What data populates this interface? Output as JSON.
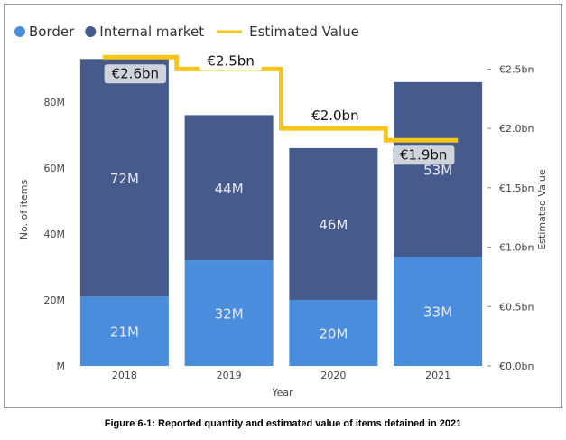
{
  "caption": "Figure 6-1: Reported quantity and estimated value of items detained in 2021",
  "legend": [
    {
      "name": "Border",
      "type": "dot"
    },
    {
      "name": "Internal market",
      "type": "dot"
    },
    {
      "name": "Estimated Value",
      "type": "line"
    }
  ],
  "colors": {
    "border": "#4a8ddc",
    "internal_market": "#465a8c",
    "estimated_value": "#f5c518"
  },
  "chart_data": {
    "type": "bar",
    "stacked": true,
    "categories": [
      "2018",
      "2019",
      "2020",
      "2021"
    ],
    "series": [
      {
        "name": "Border",
        "values": [
          21,
          32,
          20,
          33
        ],
        "labels": [
          "21M",
          "32M",
          "20M",
          "33M"
        ]
      },
      {
        "name": "Internal market",
        "values": [
          72,
          44,
          46,
          53
        ],
        "labels": [
          "72M",
          "44M",
          "46M",
          "53M"
        ]
      }
    ],
    "line_series": {
      "name": "Estimated Value",
      "values": [
        2.6,
        2.5,
        2.0,
        1.9
      ],
      "labels": [
        "€2.6bn",
        "€2.5bn",
        "€2.0bn",
        "€1.9bn"
      ]
    },
    "xlabel": "Year",
    "ylabel": "No. of items",
    "y2label": "Estimated Value",
    "ylim": [
      0,
      95
    ],
    "y2lim": [
      0,
      2.64
    ],
    "yticks": [
      0,
      20,
      40,
      60,
      80
    ],
    "ytick_labels": [
      "M",
      "20M",
      "40M",
      "60M",
      "80M"
    ],
    "y2ticks": [
      0,
      0.5,
      1.0,
      1.5,
      2.0,
      2.5
    ],
    "y2tick_labels": [
      "€0.0bn",
      "€0.5bn",
      "€1.0bn",
      "€1.5bn",
      "€2.0bn",
      "€2.5bn"
    ],
    "grid": false,
    "legend_position": "top-left"
  }
}
